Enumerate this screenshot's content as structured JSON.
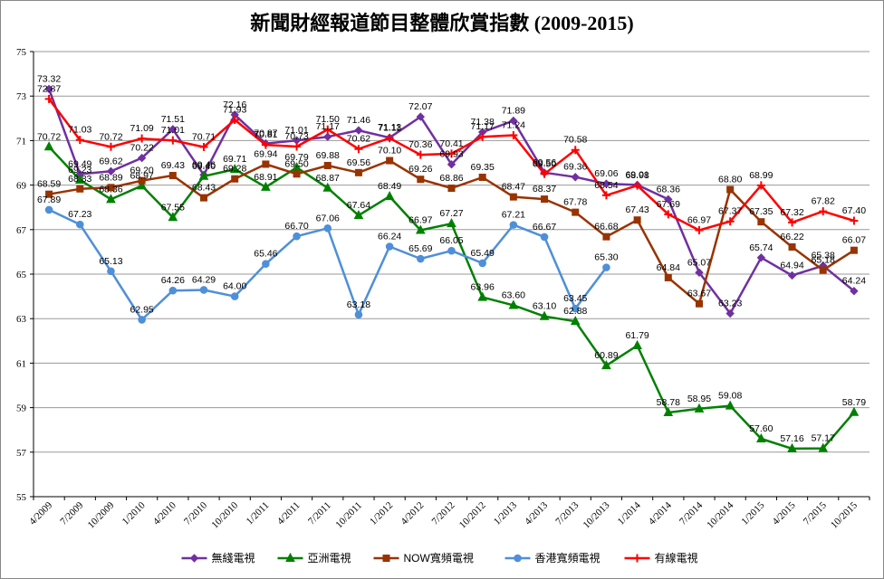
{
  "chart_data": {
    "type": "line",
    "title": "新聞財經報道節目整體欣賞指數 (2009-2015)",
    "xlabel": "",
    "ylabel": "",
    "ylim": [
      55,
      75
    ],
    "yticks": [
      "55",
      "57",
      "59",
      "61",
      "63",
      "65",
      "67",
      "69",
      "71",
      "73",
      "75"
    ],
    "grid": true,
    "legend_position": "bottom",
    "categories": [
      "4/2009",
      "7/2009",
      "10/2009",
      "1/2010",
      "4/2010",
      "7/2010",
      "10/2010",
      "1/2011",
      "4/2011",
      "7/2011",
      "10/2011",
      "1/2012",
      "4/2012",
      "7/2012",
      "10/2012",
      "1/2013",
      "4/2013",
      "7/2013",
      "10/2013",
      "1/2014",
      "4/2014",
      "7/2014",
      "10/2014",
      "1/2015",
      "4/2015",
      "7/2015",
      "10/2015"
    ],
    "series": [
      {
        "name": "無綫電視",
        "color": "#7030A0",
        "marker": "diamond",
        "values": [
          73.32,
          69.49,
          69.62,
          70.22,
          71.51,
          69.46,
          72.16,
          70.87,
          71.01,
          71.17,
          71.46,
          71.13,
          72.07,
          69.93,
          71.38,
          71.89,
          69.56,
          69.36,
          69.06,
          69.01,
          68.36,
          65.07,
          63.23,
          65.74,
          64.94,
          65.38,
          64.24
        ]
      },
      {
        "name": "亞洲電視",
        "color": "#008000",
        "marker": "triangle",
        "values": [
          70.72,
          69.23,
          68.36,
          68.97,
          67.55,
          69.4,
          69.71,
          68.91,
          69.79,
          68.87,
          67.64,
          68.49,
          66.97,
          67.27,
          63.96,
          63.6,
          63.1,
          62.88,
          60.89,
          61.79,
          58.78,
          58.95,
          59.08,
          57.6,
          57.16,
          57.17,
          58.79
        ]
      },
      {
        "name": "NOW寬頻電視",
        "color": "#993300",
        "marker": "square",
        "values": [
          68.59,
          68.83,
          68.89,
          69.2,
          69.43,
          68.43,
          69.28,
          69.94,
          69.5,
          69.88,
          69.56,
          70.1,
          69.26,
          68.86,
          69.35,
          68.47,
          68.37,
          67.78,
          66.68,
          67.43,
          64.84,
          63.67,
          68.8,
          67.35,
          66.22,
          65.18,
          66.07
        ]
      },
      {
        "name": "香港寬頻電視",
        "color": "#4F8FD8",
        "marker": "circle",
        "values": [
          67.89,
          67.23,
          65.13,
          62.95,
          64.26,
          64.29,
          64.0,
          65.46,
          66.7,
          67.06,
          63.18,
          66.24,
          65.69,
          66.05,
          65.49,
          67.21,
          66.67,
          63.45,
          65.3,
          null,
          null,
          null,
          null,
          null,
          null,
          null,
          null
        ]
      },
      {
        "name": "有線電視",
        "color": "#FF0000",
        "marker": "plus",
        "values": [
          72.87,
          71.03,
          70.72,
          71.09,
          71.01,
          70.71,
          71.93,
          70.81,
          70.73,
          71.5,
          70.62,
          71.11,
          70.36,
          70.41,
          71.17,
          71.24,
          69.5,
          70.58,
          68.54,
          68.98,
          67.69,
          66.97,
          67.37,
          68.99,
          67.32,
          67.82,
          67.4
        ]
      }
    ]
  }
}
